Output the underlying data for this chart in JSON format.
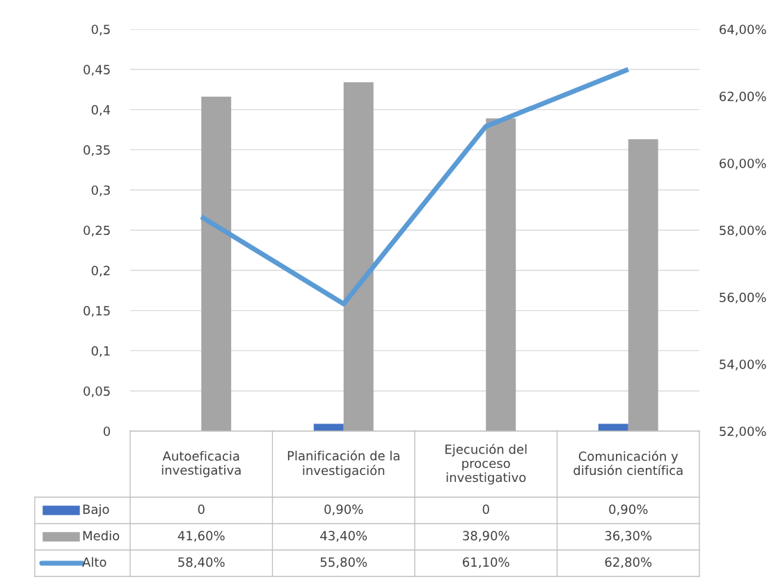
{
  "chart_data": {
    "type": "bar",
    "categories": [
      "Autoeficacia\ninvestigativa",
      "Planificación de la\ninvestigación",
      "Ejecución del\nproceso\ninvestigativo",
      "Comunicación y\ndifusión científica"
    ],
    "series": [
      {
        "name": "Bajo",
        "color": "#4472c4",
        "values": [
          0,
          0.009,
          0,
          0.009
        ],
        "value_labels": [
          "0",
          "0,90%",
          "0",
          "0,90%"
        ]
      },
      {
        "name": "Medio",
        "color": "#a5a5a5",
        "values": [
          0.416,
          0.434,
          0.389,
          0.363
        ],
        "value_labels": [
          "41,60%",
          "43,40%",
          "38,90%",
          "36,30%"
        ]
      },
      {
        "name": "Alto",
        "type": "line",
        "axis": "y2",
        "color": "#5b9bd5",
        "values": [
          58.4,
          55.8,
          61.1,
          62.8
        ],
        "value_labels": [
          "58,40%",
          "55,80%",
          "61,10%",
          "62,80%"
        ]
      }
    ],
    "ylim": [
      0,
      0.5
    ],
    "yticks": [
      0,
      {
        "value": 0.05,
        "label": "0,05"
      },
      {
        "value": 0.1,
        "label": "0,1"
      },
      {
        "value": 0.15,
        "label": "0,15"
      },
      {
        "value": 0.2,
        "label": "0,2"
      },
      {
        "value": 0.25,
        "label": "0,25"
      },
      {
        "value": 0.3,
        "label": "0,3"
      },
      {
        "value": 0.35,
        "label": "0,35"
      },
      {
        "value": 0.4,
        "label": "0,4"
      },
      {
        "value": 0.45,
        "label": "0,45"
      },
      {
        "value": 0.5,
        "label": "0,5"
      }
    ],
    "y2lim": [
      52,
      64
    ],
    "y2ticks": [
      {
        "value": 52,
        "label": "52,00%"
      },
      {
        "value": 54,
        "label": "54,00%"
      },
      {
        "value": 56,
        "label": "56,00%"
      },
      {
        "value": 58,
        "label": "58,00%"
      },
      {
        "value": 60,
        "label": "60,00%"
      },
      {
        "value": 62,
        "label": "62,00%"
      },
      {
        "value": 64,
        "label": "64,00%"
      }
    ],
    "grid": "y",
    "legend": "bottom"
  }
}
